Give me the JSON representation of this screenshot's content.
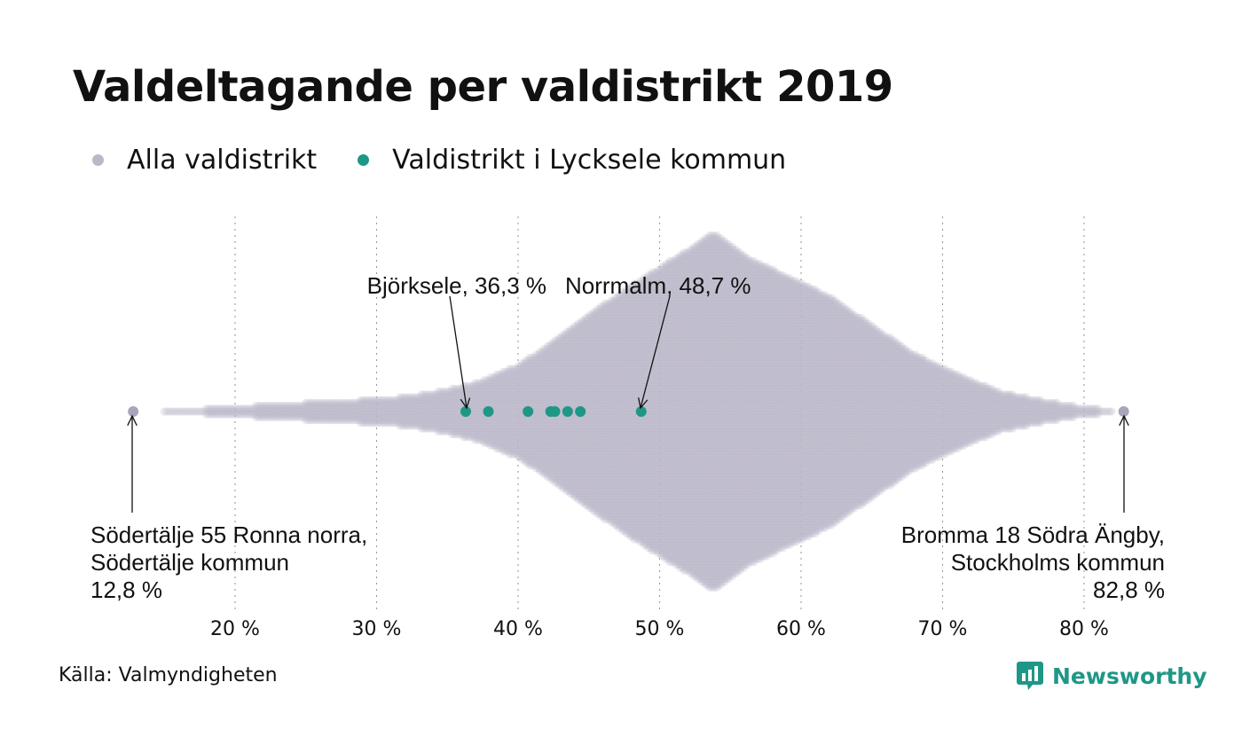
{
  "title": "Valdeltagande per valdistrikt 2019",
  "legend": [
    {
      "label": "Alla valdistrikt",
      "color": "#b9b8c8"
    },
    {
      "label": "Valdistrikt i Lycksele kommun",
      "color": "#1f9786"
    }
  ],
  "source": "Källa: Valmyndigheten",
  "brand": {
    "name": "Newsworthy",
    "color": "#1f9786"
  },
  "chart_data": {
    "type": "scatter",
    "subtype": "beeswarm",
    "x_ticks": [
      {
        "value": 20,
        "label": "20 %"
      },
      {
        "value": 30,
        "label": "30 %"
      },
      {
        "value": 40,
        "label": "40 %"
      },
      {
        "value": 50,
        "label": "50 %"
      },
      {
        "value": 60,
        "label": "60 %"
      },
      {
        "value": 70,
        "label": "70 %"
      },
      {
        "value": 80,
        "label": "80 %"
      }
    ],
    "xlim": [
      12.8,
      82.8
    ],
    "grid": "vertical dotted",
    "legend_position": "top-left",
    "series": [
      {
        "name": "Alla valdistrikt",
        "color": "#b9b8c8",
        "min": 12.8,
        "max": 82.8,
        "density_profile": [
          [
            15.0,
            0.5
          ],
          [
            18.0,
            1
          ],
          [
            20.0,
            1.5
          ],
          [
            23.0,
            2.5
          ],
          [
            27.0,
            3.5
          ],
          [
            31.0,
            4.5
          ],
          [
            34.0,
            6.5
          ],
          [
            37.0,
            10
          ],
          [
            40.0,
            16
          ],
          [
            43.0,
            26
          ],
          [
            46.0,
            37
          ],
          [
            49.0,
            47
          ],
          [
            52.0,
            56
          ],
          [
            53.8,
            62
          ],
          [
            56.0,
            54
          ],
          [
            59.0,
            47
          ],
          [
            62.0,
            40
          ],
          [
            65.0,
            30
          ],
          [
            68.0,
            20
          ],
          [
            71.0,
            13
          ],
          [
            74.0,
            7
          ],
          [
            77.0,
            4
          ],
          [
            80.0,
            1.5
          ],
          [
            82.0,
            0.5
          ]
        ]
      },
      {
        "name": "Valdistrikt i Lycksele kommun",
        "color": "#1f9786",
        "values": [
          36.3,
          37.9,
          40.7,
          42.3,
          42.6,
          43.5,
          44.4,
          48.7
        ]
      }
    ],
    "annotations": [
      {
        "lines": [
          "Björksele, 36,3 %"
        ],
        "x": 36.3,
        "align": "right"
      },
      {
        "lines": [
          "Norrmalm, 48,7 %"
        ],
        "x": 48.7,
        "align": "left"
      },
      {
        "lines": [
          "Södertälje 55 Ronna norra,",
          "Södertälje kommun",
          "12,8 %"
        ],
        "x": 12.8,
        "align": "left"
      },
      {
        "lines": [
          "Bromma 18 Södra Ängby,",
          "Stockholms kommun",
          "82,8 %"
        ],
        "x": 82.8,
        "align": "right"
      }
    ]
  }
}
